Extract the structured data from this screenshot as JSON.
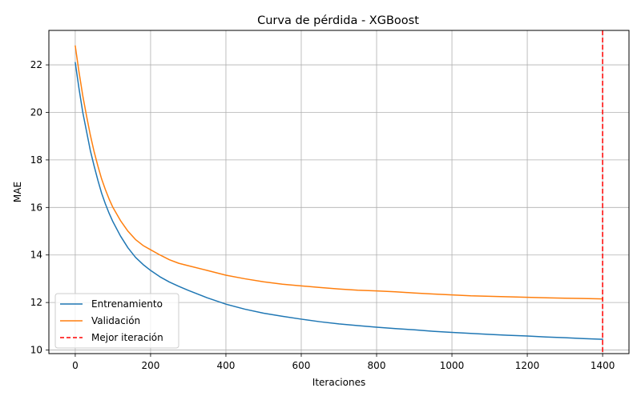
{
  "chart_data": {
    "type": "line",
    "title": "Curva de pérdida - XGBoost",
    "xlabel": "Iteraciones",
    "ylabel": "MAE",
    "xlim": [
      -70,
      1470
    ],
    "ylim": [
      9.85,
      23.45
    ],
    "xticks": [
      0,
      200,
      400,
      600,
      800,
      1000,
      1200,
      1400
    ],
    "yticks": [
      10,
      12,
      14,
      16,
      18,
      20,
      22
    ],
    "grid": true,
    "legend_position": "lower-left",
    "series": [
      {
        "name": "Entrenamiento",
        "color": "#1f77b4",
        "x": [
          0,
          10,
          20,
          30,
          40,
          50,
          60,
          70,
          80,
          90,
          100,
          120,
          140,
          160,
          180,
          200,
          225,
          250,
          275,
          300,
          350,
          400,
          450,
          500,
          550,
          600,
          650,
          700,
          750,
          800,
          850,
          900,
          950,
          1000,
          1050,
          1100,
          1150,
          1200,
          1250,
          1300,
          1350,
          1400
        ],
        "y": [
          22.1,
          21.0,
          20.0,
          19.2,
          18.4,
          17.75,
          17.15,
          16.6,
          16.15,
          15.75,
          15.4,
          14.8,
          14.3,
          13.9,
          13.6,
          13.35,
          13.08,
          12.86,
          12.68,
          12.51,
          12.2,
          11.93,
          11.72,
          11.55,
          11.42,
          11.3,
          11.19,
          11.1,
          11.03,
          10.96,
          10.9,
          10.85,
          10.79,
          10.74,
          10.7,
          10.66,
          10.62,
          10.59,
          10.55,
          10.52,
          10.48,
          10.45
        ]
      },
      {
        "name": "Validación",
        "color": "#ff7f0e",
        "x": [
          0,
          10,
          20,
          30,
          40,
          50,
          60,
          70,
          80,
          90,
          100,
          120,
          140,
          160,
          180,
          200,
          225,
          250,
          275,
          300,
          350,
          400,
          450,
          500,
          550,
          600,
          650,
          700,
          750,
          800,
          850,
          900,
          950,
          1000,
          1050,
          1100,
          1150,
          1200,
          1250,
          1300,
          1350,
          1400
        ],
        "y": [
          22.8,
          21.7,
          20.7,
          19.85,
          19.05,
          18.35,
          17.75,
          17.2,
          16.75,
          16.35,
          16.0,
          15.45,
          15.0,
          14.65,
          14.4,
          14.22,
          14.0,
          13.8,
          13.65,
          13.55,
          13.35,
          13.15,
          13.0,
          12.87,
          12.77,
          12.7,
          12.63,
          12.57,
          12.52,
          12.49,
          12.45,
          12.4,
          12.36,
          12.32,
          12.28,
          12.26,
          12.24,
          12.22,
          12.2,
          12.18,
          12.17,
          12.15
        ]
      }
    ],
    "vline": {
      "name": "Mejor iteración",
      "x": 1400,
      "color": "#ff0000",
      "style": "dashed"
    }
  }
}
